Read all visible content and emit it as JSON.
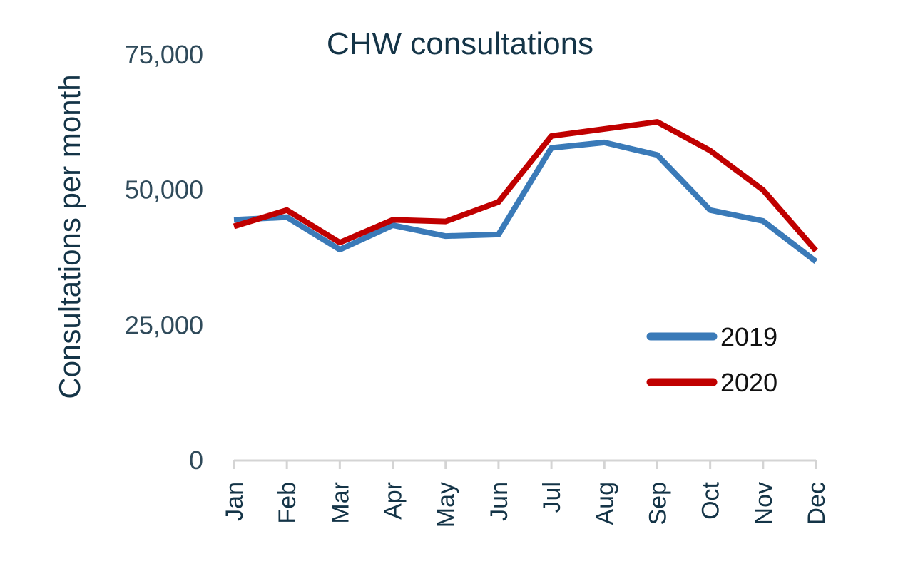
{
  "chart_data": {
    "type": "line",
    "title": "CHW consultations",
    "xlabel": "",
    "ylabel": "Consultations per month",
    "categories": [
      "Jan",
      "Feb",
      "Mar",
      "Apr",
      "May",
      "Jun",
      "Jul",
      "Aug",
      "Sep",
      "Oct",
      "Nov",
      "Dec"
    ],
    "ylim": [
      0,
      75000
    ],
    "yticks": [
      "0",
      "25,000",
      "50,000",
      "75,000"
    ],
    "ytick_values": [
      0,
      25000,
      50000,
      75000
    ],
    "grid": false,
    "legend_position": "lower-right",
    "series": [
      {
        "name": "2019",
        "color": "#3a7ab8",
        "values": [
          44500,
          45000,
          39000,
          43500,
          41500,
          41800,
          57800,
          58800,
          56500,
          46300,
          44300,
          36800
        ]
      },
      {
        "name": "2020",
        "color": "#c00000",
        "values": [
          43300,
          46300,
          40300,
          44500,
          44200,
          47800,
          60000,
          61300,
          62600,
          57300,
          50000,
          38800
        ]
      }
    ]
  }
}
